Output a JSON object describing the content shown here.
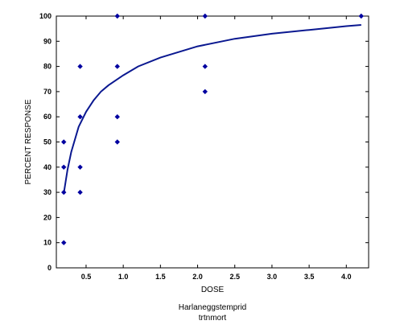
{
  "chart_data": {
    "type": "scatter",
    "xlabel": "DOSE",
    "ylabel": "PERCENT  RESPONSE",
    "xlim": [
      0.1,
      4.3
    ],
    "ylim": [
      0,
      100
    ],
    "x_ticks": [
      "0.5",
      "1.0",
      "1.5",
      "2.0",
      "2.5",
      "3.0",
      "3.5",
      "4.0"
    ],
    "y_ticks": [
      "0",
      "10",
      "20",
      "30",
      "40",
      "50",
      "60",
      "70",
      "80",
      "90",
      "100"
    ],
    "grid": false,
    "legend": "none",
    "point_color": "#0000a0",
    "curve_color": "#0a1890",
    "points": [
      {
        "x": 0.2,
        "y": 10
      },
      {
        "x": 0.2,
        "y": 30
      },
      {
        "x": 0.2,
        "y": 40
      },
      {
        "x": 0.2,
        "y": 50
      },
      {
        "x": 0.42,
        "y": 30
      },
      {
        "x": 0.42,
        "y": 40
      },
      {
        "x": 0.42,
        "y": 60
      },
      {
        "x": 0.42,
        "y": 80
      },
      {
        "x": 0.92,
        "y": 50
      },
      {
        "x": 0.92,
        "y": 60
      },
      {
        "x": 0.92,
        "y": 80
      },
      {
        "x": 0.92,
        "y": 100
      },
      {
        "x": 2.1,
        "y": 70
      },
      {
        "x": 2.1,
        "y": 80
      },
      {
        "x": 2.1,
        "y": 100
      },
      {
        "x": 4.2,
        "y": 100
      }
    ],
    "fit_curve": {
      "x": [
        0.2,
        0.25,
        0.3,
        0.4,
        0.5,
        0.6,
        0.7,
        0.8,
        1.0,
        1.2,
        1.5,
        2.0,
        2.5,
        3.0,
        3.5,
        4.0,
        4.2
      ],
      "y": [
        29.5,
        39,
        46,
        56,
        62,
        66.5,
        70,
        72.5,
        76.5,
        80,
        83.5,
        88,
        91,
        93,
        94.5,
        96,
        96.5
      ]
    },
    "caption_lines": [
      "Harlaneggstemprid",
      "trtnmort"
    ]
  }
}
